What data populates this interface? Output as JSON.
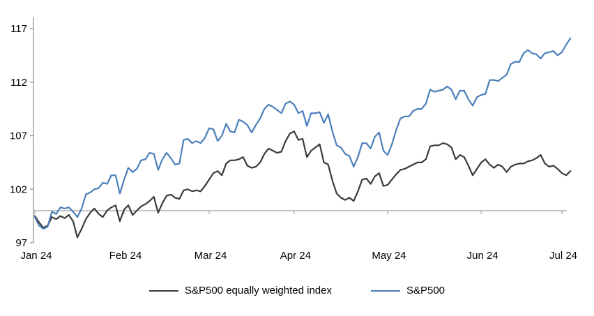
{
  "chart_data": {
    "type": "line",
    "title": "",
    "xlabel": "",
    "ylabel": "",
    "ylim": [
      97,
      117
    ],
    "y_ticks": [
      97,
      102,
      107,
      112,
      117
    ],
    "x_tick_labels": [
      "Jan 24",
      "Feb 24",
      "Mar 24",
      "Apr 24",
      "May 24",
      "Jun 24",
      "Jul 24"
    ],
    "x_tick_day_index": [
      0,
      21,
      41,
      61,
      83,
      105,
      124
    ],
    "x_unit": "trading days from Jan 2, 2024",
    "total_days": 127,
    "baseline_value": 100,
    "grid": false,
    "legend_position": "bottom",
    "colors": {
      "axis": "#9b9b9b",
      "baseline": "#a8a8a8",
      "text": "#000000"
    },
    "series": [
      {
        "name": "S&P500 equally weighted index",
        "color": "#3a3a3a",
        "values": [
          99.5,
          98.9,
          98.4,
          98.6,
          99.4,
          99.2,
          99.5,
          99.3,
          99.6,
          99.0,
          97.5,
          98.3,
          99.2,
          99.8,
          100.2,
          99.7,
          99.4,
          100.0,
          100.3,
          100.5,
          99.0,
          100.1,
          100.5,
          99.6,
          100.0,
          100.4,
          100.6,
          100.9,
          101.3,
          99.8,
          100.7,
          101.4,
          101.5,
          101.2,
          101.1,
          101.9,
          102.0,
          101.8,
          101.9,
          101.8,
          102.3,
          102.9,
          103.5,
          103.7,
          103.3,
          104.4,
          104.7,
          104.7,
          104.8,
          105.0,
          104.2,
          104.0,
          104.1,
          104.5,
          105.3,
          105.8,
          105.6,
          105.4,
          105.5,
          106.5,
          107.2,
          107.4,
          106.6,
          106.7,
          105.0,
          105.6,
          105.9,
          106.2,
          104.5,
          104.3,
          102.8,
          101.6,
          101.2,
          101.0,
          101.2,
          100.9,
          101.8,
          102.9,
          103.0,
          102.5,
          103.2,
          103.5,
          102.3,
          102.4,
          102.9,
          103.4,
          103.8,
          103.9,
          104.1,
          104.3,
          104.5,
          104.5,
          104.8,
          106.0,
          106.1,
          106.1,
          106.3,
          106.2,
          105.9,
          104.8,
          105.2,
          105.0,
          104.2,
          103.3,
          103.9,
          104.5,
          104.8,
          104.3,
          104.0,
          104.3,
          104.1,
          103.6,
          104.1,
          104.3,
          104.4,
          104.4,
          104.6,
          104.7,
          104.9,
          105.2,
          104.4,
          104.1,
          104.2,
          103.9,
          103.5,
          103.3,
          103.7
        ]
      },
      {
        "name": "S&P500",
        "color": "#4a7ebb",
        "values": [
          99.4,
          98.6,
          98.3,
          98.5,
          99.9,
          99.7,
          100.3,
          100.2,
          100.3,
          99.9,
          99.4,
          100.2,
          101.5,
          101.7,
          102.0,
          102.1,
          102.6,
          102.5,
          103.3,
          103.3,
          101.6,
          102.9,
          104.0,
          103.6,
          103.9,
          104.7,
          104.8,
          105.4,
          105.3,
          103.8,
          104.8,
          105.4,
          104.9,
          104.3,
          104.4,
          106.6,
          106.7,
          106.3,
          106.5,
          106.3,
          106.8,
          107.7,
          107.6,
          106.5,
          107.0,
          108.1,
          107.4,
          107.3,
          108.5,
          108.3,
          108.0,
          107.3,
          108.0,
          108.6,
          109.5,
          109.9,
          109.7,
          109.4,
          109.1,
          110.0,
          110.2,
          109.9,
          109.1,
          109.3,
          107.9,
          109.1,
          109.1,
          109.2,
          108.2,
          109.0,
          107.4,
          106.1,
          105.9,
          105.3,
          105.1,
          104.1,
          105.0,
          106.3,
          106.3,
          105.8,
          106.9,
          107.3,
          105.6,
          105.2,
          106.2,
          107.5,
          108.6,
          108.8,
          108.8,
          109.3,
          109.5,
          109.5,
          110.0,
          111.3,
          111.1,
          111.2,
          111.3,
          111.6,
          111.3,
          110.4,
          111.2,
          111.2,
          110.4,
          109.8,
          110.6,
          110.8,
          110.9,
          112.2,
          112.2,
          112.1,
          112.4,
          112.7,
          113.7,
          113.9,
          113.9,
          114.7,
          115.0,
          114.7,
          114.6,
          114.2,
          114.7,
          114.8,
          114.9,
          114.5,
          114.8,
          115.5,
          116.1
        ]
      }
    ]
  },
  "legend": {
    "equal_weight_label": "S&P500 equally weighted index",
    "sp500_label": "S&P500"
  }
}
